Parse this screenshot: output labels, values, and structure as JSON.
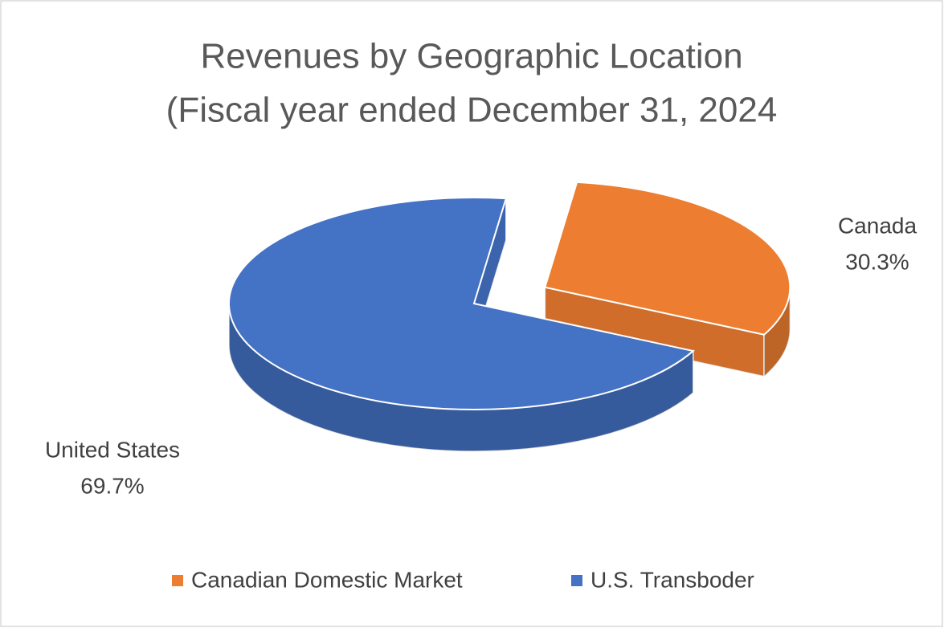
{
  "chart_data": {
    "type": "pie",
    "title": [
      "Revenues by Geographic Location",
      "(Fiscal year ended December 31, 2024"
    ],
    "categories": [
      "Canadian Domestic Market",
      "U.S. Transboder"
    ],
    "data_labels": [
      "Canada",
      "United States"
    ],
    "values": [
      30.3,
      69.7
    ],
    "value_labels": [
      "30.3%",
      "69.7%"
    ],
    "colors": [
      "#ed7d31",
      "#4472c4"
    ],
    "legend": "bottom"
  }
}
